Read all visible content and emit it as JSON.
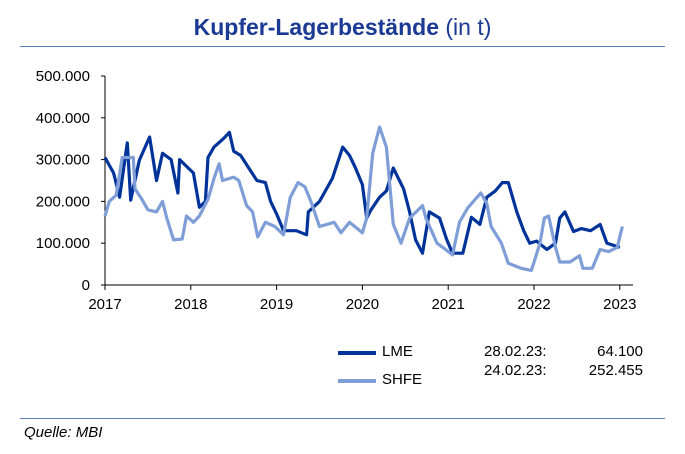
{
  "title": {
    "main": "Kupfer-Lagerbestände",
    "unit": "(in t)"
  },
  "source": "Quelle: MBI",
  "colors": {
    "LME": "#003399",
    "SHFE": "#7f9ed8",
    "title": "#1a3a94"
  },
  "legend": [
    {
      "name": "LME",
      "date": "28.02.23:",
      "value": "64.100"
    },
    {
      "name": "SHFE",
      "date": "24.02.23:",
      "value": "252.455"
    }
  ],
  "chart_data": {
    "type": "line",
    "title": "Kupfer-Lagerbestände (in t)",
    "xlabel": "",
    "ylabel": "",
    "xlim": [
      2017,
      2023.1
    ],
    "ylim": [
      0,
      500000
    ],
    "x_ticks": [
      "2017",
      "2018",
      "2019",
      "2020",
      "2021",
      "2022",
      "2023"
    ],
    "y_ticks": [
      "0",
      "100.000",
      "200.000",
      "300.000",
      "400.000",
      "500.000"
    ],
    "grid": false,
    "legend_position": "bottom-right",
    "series": [
      {
        "name": "LME",
        "points": [
          [
            2017.0,
            305000
          ],
          [
            2017.1,
            268000
          ],
          [
            2017.17,
            210000
          ],
          [
            2017.26,
            340000
          ],
          [
            2017.3,
            203000
          ],
          [
            2017.4,
            298000
          ],
          [
            2017.52,
            354000
          ],
          [
            2017.6,
            250000
          ],
          [
            2017.67,
            315000
          ],
          [
            2017.77,
            300000
          ],
          [
            2017.85,
            220000
          ],
          [
            2017.87,
            300000
          ],
          [
            2018.03,
            268000
          ],
          [
            2018.1,
            186000
          ],
          [
            2018.17,
            200000
          ],
          [
            2018.2,
            305000
          ],
          [
            2018.27,
            330000
          ],
          [
            2018.38,
            350000
          ],
          [
            2018.45,
            365000
          ],
          [
            2018.5,
            320000
          ],
          [
            2018.58,
            310000
          ],
          [
            2018.66,
            285000
          ],
          [
            2018.77,
            250000
          ],
          [
            2018.87,
            245000
          ],
          [
            2018.93,
            200000
          ],
          [
            2019.0,
            170000
          ],
          [
            2019.08,
            130000
          ],
          [
            2019.23,
            130000
          ],
          [
            2019.35,
            120000
          ],
          [
            2019.37,
            175000
          ],
          [
            2019.5,
            200000
          ],
          [
            2019.65,
            255000
          ],
          [
            2019.77,
            330000
          ],
          [
            2019.85,
            310000
          ],
          [
            2019.92,
            280000
          ],
          [
            2020.0,
            240000
          ],
          [
            2020.05,
            160000
          ],
          [
            2020.1,
            180000
          ],
          [
            2020.2,
            210000
          ],
          [
            2020.28,
            225000
          ],
          [
            2020.36,
            280000
          ],
          [
            2020.48,
            230000
          ],
          [
            2020.55,
            175000
          ],
          [
            2020.62,
            108000
          ],
          [
            2020.7,
            76000
          ],
          [
            2020.78,
            175000
          ],
          [
            2020.9,
            160000
          ],
          [
            2020.98,
            110000
          ],
          [
            2021.05,
            76000
          ],
          [
            2021.17,
            76000
          ],
          [
            2021.27,
            162000
          ],
          [
            2021.37,
            145000
          ],
          [
            2021.45,
            210000
          ],
          [
            2021.55,
            225000
          ],
          [
            2021.63,
            245000
          ],
          [
            2021.7,
            245000
          ],
          [
            2021.8,
            175000
          ],
          [
            2021.88,
            130000
          ],
          [
            2021.95,
            100000
          ],
          [
            2022.03,
            105000
          ],
          [
            2022.15,
            85000
          ],
          [
            2022.25,
            100000
          ],
          [
            2022.3,
            160000
          ],
          [
            2022.36,
            175000
          ],
          [
            2022.46,
            128000
          ],
          [
            2022.55,
            135000
          ],
          [
            2022.66,
            130000
          ],
          [
            2022.77,
            145000
          ],
          [
            2022.85,
            100000
          ],
          [
            2023.0,
            90000
          ]
        ]
      },
      {
        "name": "SHFE",
        "points": [
          [
            2017.0,
            165000
          ],
          [
            2017.05,
            200000
          ],
          [
            2017.13,
            215000
          ],
          [
            2017.2,
            305000
          ],
          [
            2017.33,
            305000
          ],
          [
            2017.35,
            230000
          ],
          [
            2017.43,
            205000
          ],
          [
            2017.5,
            180000
          ],
          [
            2017.6,
            175000
          ],
          [
            2017.67,
            200000
          ],
          [
            2017.72,
            160000
          ],
          [
            2017.8,
            108000
          ],
          [
            2017.9,
            110000
          ],
          [
            2017.95,
            165000
          ],
          [
            2018.03,
            150000
          ],
          [
            2018.1,
            165000
          ],
          [
            2018.2,
            205000
          ],
          [
            2018.27,
            255000
          ],
          [
            2018.33,
            290000
          ],
          [
            2018.37,
            250000
          ],
          [
            2018.5,
            258000
          ],
          [
            2018.56,
            250000
          ],
          [
            2018.65,
            190000
          ],
          [
            2018.72,
            175000
          ],
          [
            2018.78,
            115000
          ],
          [
            2018.87,
            150000
          ],
          [
            2018.98,
            140000
          ],
          [
            2019.08,
            120000
          ],
          [
            2019.16,
            210000
          ],
          [
            2019.25,
            245000
          ],
          [
            2019.33,
            235000
          ],
          [
            2019.4,
            200000
          ],
          [
            2019.5,
            140000
          ],
          [
            2019.67,
            150000
          ],
          [
            2019.75,
            125000
          ],
          [
            2019.85,
            150000
          ],
          [
            2020.0,
            125000
          ],
          [
            2020.05,
            160000
          ],
          [
            2020.12,
            315000
          ],
          [
            2020.2,
            378000
          ],
          [
            2020.28,
            330000
          ],
          [
            2020.36,
            145000
          ],
          [
            2020.45,
            100000
          ],
          [
            2020.55,
            160000
          ],
          [
            2020.7,
            190000
          ],
          [
            2020.74,
            160000
          ],
          [
            2020.87,
            100000
          ],
          [
            2020.95,
            88000
          ],
          [
            2021.05,
            72000
          ],
          [
            2021.13,
            150000
          ],
          [
            2021.23,
            185000
          ],
          [
            2021.38,
            220000
          ],
          [
            2021.45,
            195000
          ],
          [
            2021.5,
            140000
          ],
          [
            2021.62,
            100000
          ],
          [
            2021.7,
            52000
          ],
          [
            2021.85,
            40000
          ],
          [
            2021.97,
            35000
          ],
          [
            2022.07,
            100000
          ],
          [
            2022.12,
            160000
          ],
          [
            2022.17,
            165000
          ],
          [
            2022.25,
            90000
          ],
          [
            2022.3,
            55000
          ],
          [
            2022.42,
            55000
          ],
          [
            2022.53,
            70000
          ],
          [
            2022.57,
            40000
          ],
          [
            2022.68,
            40000
          ],
          [
            2022.77,
            85000
          ],
          [
            2022.87,
            80000
          ],
          [
            2022.97,
            90000
          ],
          [
            2023.03,
            140000
          ]
        ]
      }
    ]
  }
}
